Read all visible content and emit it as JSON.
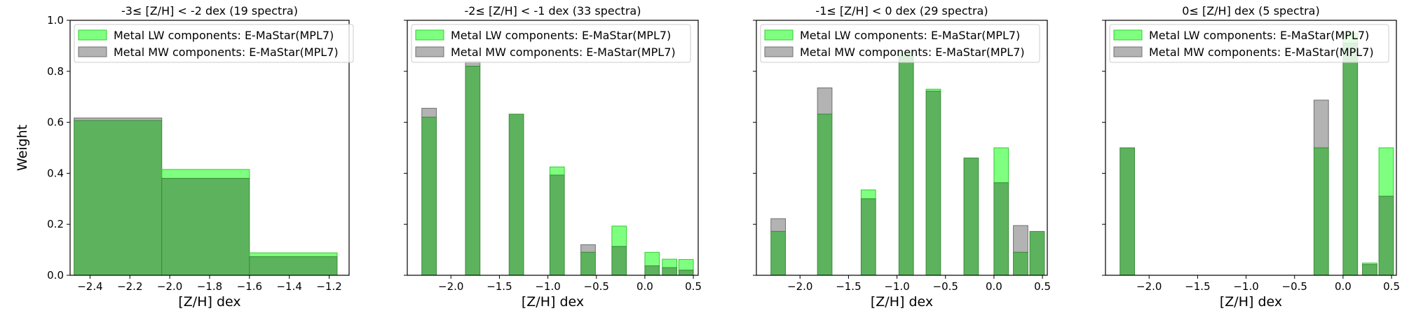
{
  "figure": {
    "ylabel": "Weight"
  },
  "colors": {
    "lw": "#00ff00",
    "mw": "#808080",
    "overlap": "#5db35d",
    "legend_border": "#cccccc"
  },
  "chart_data": [
    {
      "type": "bar",
      "title": "-3≤  [Z/H] < -2 dex (19 spectra)",
      "xlabel": "[Z/H] dex",
      "ylabel": "Weight",
      "xlim": [
        -2.5,
        -1.1
      ],
      "ylim": [
        0,
        1.0
      ],
      "xticks": [
        -2.4,
        -2.2,
        -2.0,
        -1.8,
        -1.6,
        -1.4,
        -1.2
      ],
      "xtick_labels": [
        "−2.4",
        "−2.2",
        "−2.0",
        "−1.8",
        "−1.6",
        "−1.4",
        "−1.2"
      ],
      "yticks": [
        0.0,
        0.2,
        0.4,
        0.6,
        0.8,
        1.0
      ],
      "ytick_labels": [
        "0.0",
        "0.2",
        "0.4",
        "0.6",
        "0.8",
        "1.0"
      ],
      "legend": [
        "Metal LW components: E-MaStar(MPL7)",
        "Metal MW components: E-MaStar(MPL7)"
      ],
      "legend_position": "upper-left",
      "bar_width": 0.44,
      "bins": [
        -2.48,
        -2.04,
        -1.6
      ],
      "series": [
        {
          "name": "Metal LW components: E-MaStar(MPL7)",
          "values": [
            0.607,
            0.415,
            0.088
          ]
        },
        {
          "name": "Metal MW components: E-MaStar(MPL7)",
          "values": [
            0.617,
            0.38,
            0.073
          ]
        }
      ]
    },
    {
      "type": "bar",
      "title": "-2≤  [Z/H] < -1 dex (33 spectra)",
      "xlabel": "[Z/H] dex",
      "ylabel": "Weight",
      "xlim": [
        -2.45,
        0.55
      ],
      "ylim": [
        0,
        1.0
      ],
      "xticks": [
        -2.0,
        -1.5,
        -1.0,
        -0.5,
        0.0,
        0.5
      ],
      "xtick_labels": [
        "−2.0",
        "−1.5",
        "−1.0",
        "−0.5",
        "0.0",
        "0.5"
      ],
      "yticks": [
        0.0,
        0.2,
        0.4,
        0.6,
        0.8,
        1.0
      ],
      "legend": [
        "Metal LW components: E-MaStar(MPL7)",
        "Metal MW components: E-MaStar(MPL7)"
      ],
      "legend_position": "upper-left",
      "bar_width": 0.15,
      "bins": [
        -2.3,
        -1.85,
        -1.4,
        -0.98,
        -0.66,
        -0.34,
        0.0,
        0.18,
        0.35
      ],
      "series": [
        {
          "name": "Metal LW components: E-MaStar(MPL7)",
          "values": [
            0.62,
            0.82,
            0.632,
            0.425,
            0.09,
            0.193,
            0.09,
            0.063,
            0.062
          ]
        },
        {
          "name": "Metal MW components: E-MaStar(MPL7)",
          "values": [
            0.655,
            0.838,
            0.632,
            0.393,
            0.12,
            0.113,
            0.037,
            0.03,
            0.02
          ]
        }
      ]
    },
    {
      "type": "bar",
      "title": "-1≤  [Z/H] < 0 dex (29 spectra)",
      "xlabel": "[Z/H] dex",
      "ylabel": "Weight",
      "xlim": [
        -2.45,
        0.55
      ],
      "ylim": [
        0,
        1.0
      ],
      "xticks": [
        -2.0,
        -1.5,
        -1.0,
        -0.5,
        0.0,
        0.5
      ],
      "xtick_labels": [
        "−2.0",
        "−1.5",
        "−1.0",
        "−0.5",
        "0.0",
        "0.5"
      ],
      "yticks": [
        0.0,
        0.2,
        0.4,
        0.6,
        0.8,
        1.0
      ],
      "legend": [
        "Metal LW components: E-MaStar(MPL7)",
        "Metal MW components: E-MaStar(MPL7)"
      ],
      "legend_position": "upper-left",
      "bar_width": 0.15,
      "bins": [
        -2.3,
        -1.82,
        -1.37,
        -0.98,
        -0.7,
        -0.31,
        0.0,
        0.2,
        0.37
      ],
      "series": [
        {
          "name": "Metal LW components: E-MaStar(MPL7)",
          "values": [
            0.172,
            0.632,
            0.335,
            0.875,
            0.73,
            0.46,
            0.5,
            0.09,
            0.172
          ]
        },
        {
          "name": "Metal MW components: E-MaStar(MPL7)",
          "values": [
            0.222,
            0.735,
            0.3,
            0.86,
            0.722,
            0.46,
            0.363,
            0.195,
            0.172
          ]
        }
      ]
    },
    {
      "type": "bar",
      "title": "0≤  [Z/H] dex (5 spectra)",
      "xlabel": "[Z/H] dex",
      "ylabel": "Weight",
      "xlim": [
        -2.45,
        0.55
      ],
      "ylim": [
        0,
        1.0
      ],
      "xticks": [
        -2.0,
        -1.5,
        -1.0,
        -0.5,
        0.0,
        0.5
      ],
      "xtick_labels": [
        "−2.0",
        "−1.5",
        "−1.0",
        "−0.5",
        "0.0",
        "0.5"
      ],
      "yticks": [
        0.0,
        0.2,
        0.4,
        0.6,
        0.8,
        1.0
      ],
      "legend": [
        "Metal LW components: E-MaStar(MPL7)",
        "Metal MW components: E-MaStar(MPL7)"
      ],
      "legend_position": "upper-left",
      "bar_width": 0.15,
      "bins": [
        -2.3,
        -0.3,
        0.0,
        0.2,
        0.37
      ],
      "series": [
        {
          "name": "Metal LW components: E-MaStar(MPL7)",
          "values": [
            0.5,
            0.5,
            0.95,
            0.048,
            0.5
          ]
        },
        {
          "name": "Metal MW components: E-MaStar(MPL7)",
          "values": [
            0.5,
            0.687,
            0.91,
            0.042,
            0.31
          ]
        }
      ]
    }
  ]
}
